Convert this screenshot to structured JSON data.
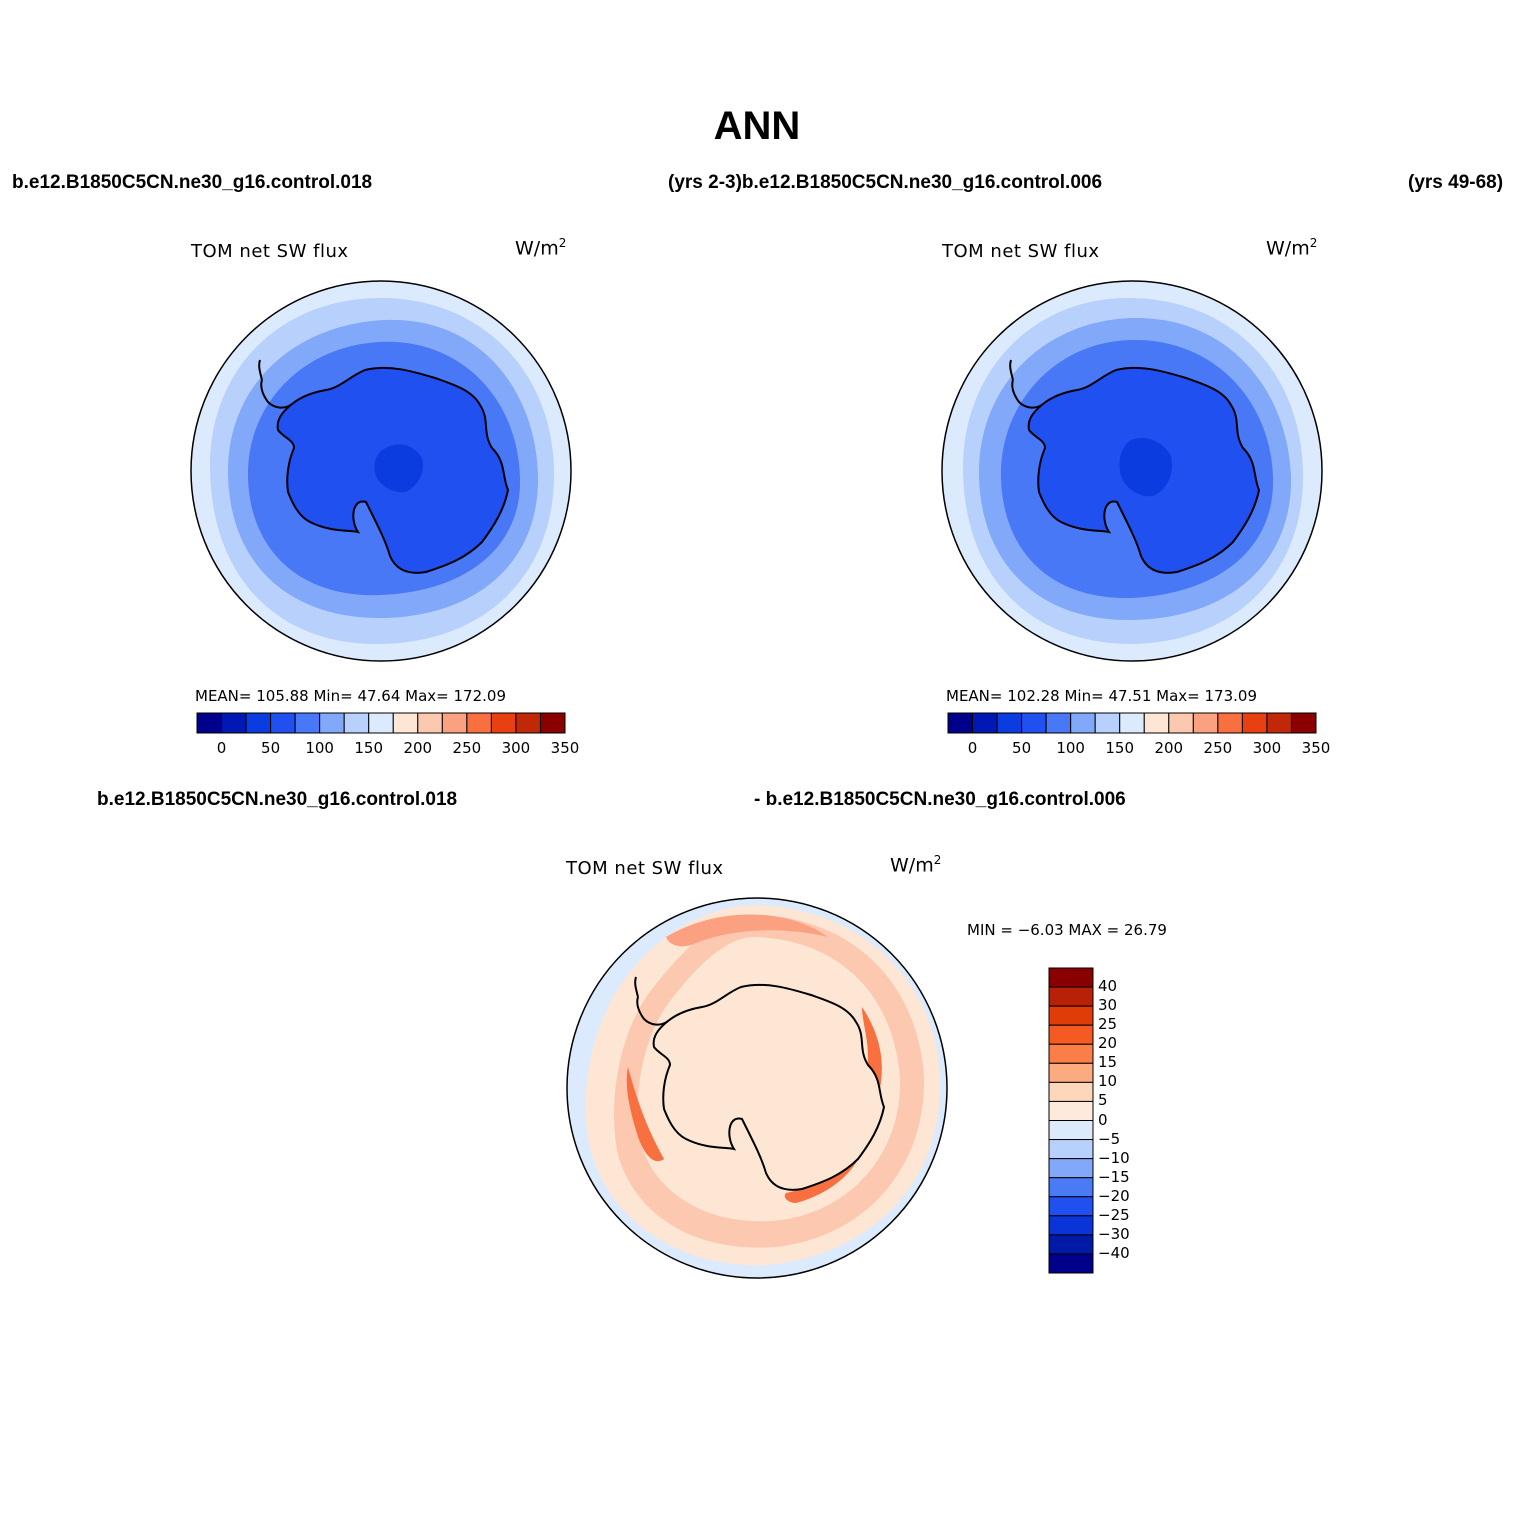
{
  "title": "ANN",
  "top_labels": {
    "left": "b.e12.B1850C5CN.ne30_g16.control.018",
    "center": "(yrs 2-3)b.e12.B1850C5CN.ne30_g16.control.006",
    "right": "(yrs 49-68)"
  },
  "diff_labels": {
    "left": "b.e12.B1850C5CN.ne30_g16.control.018",
    "right": "- b.e12.B1850C5CN.ne30_g16.control.006"
  },
  "panels": [
    {
      "title": "TOM net SW flux",
      "units_base": "W/m",
      "units_exp": "2",
      "stats": "MEAN= 105.88   Min=   47.64   Max= 172.09",
      "mean": 105.88,
      "min": 47.64,
      "max": 172.09
    },
    {
      "title": "TOM net SW flux",
      "units_base": "W/m",
      "units_exp": "2",
      "stats": "MEAN= 102.28   Min=   47.51   Max= 173.09",
      "mean": 102.28,
      "min": 47.51,
      "max": 173.09
    }
  ],
  "diff_panel": {
    "title": "TOM net SW flux",
    "units_base": "W/m",
    "units_exp": "2",
    "stats": "MIN =   −6.03  MAX =   26.79",
    "min": -6.03,
    "max": 26.79
  },
  "colorbar_abs": {
    "ticks": [
      "0",
      "50",
      "100",
      "150",
      "200",
      "250",
      "300",
      "350"
    ],
    "colors": [
      "#00008a",
      "#0018b4",
      "#0a3ce0",
      "#2050f0",
      "#4878f5",
      "#82a8fa",
      "#b8d0fc",
      "#dceafd",
      "#fde6d4",
      "#fcc8b0",
      "#fba080",
      "#f87040",
      "#e84010",
      "#c02808",
      "#8a0000"
    ]
  },
  "colorbar_diff": {
    "labels": [
      "40",
      "30",
      "25",
      "20",
      "15",
      "10",
      "5",
      "0",
      "−5",
      "−10",
      "−15",
      "−20",
      "−25",
      "−30",
      "−40"
    ],
    "colors": [
      "#8a0000",
      "#b82008",
      "#e03c08",
      "#f55a20",
      "#fb7e48",
      "#fcaa80",
      "#fdd6bc",
      "#feeadc",
      "#dceafc",
      "#b8d0fc",
      "#82a8fa",
      "#4a7af4",
      "#2050f0",
      "#0a34d8",
      "#001aa8",
      "#00008a"
    ]
  },
  "map_colors": {
    "abs_outer": "#dceafd",
    "abs_ring1": "#b8d0fc",
    "abs_ring2": "#82a8fa",
    "abs_ring3": "#4878f5",
    "abs_inner": "#2050f0",
    "abs_core": "#0a3ce0",
    "diff_base": "#fde6d4",
    "diff_light": "#fcc8b0",
    "diff_mid": "#fba080",
    "diff_strong": "#f87040",
    "diff_blue": "#dceafd"
  }
}
